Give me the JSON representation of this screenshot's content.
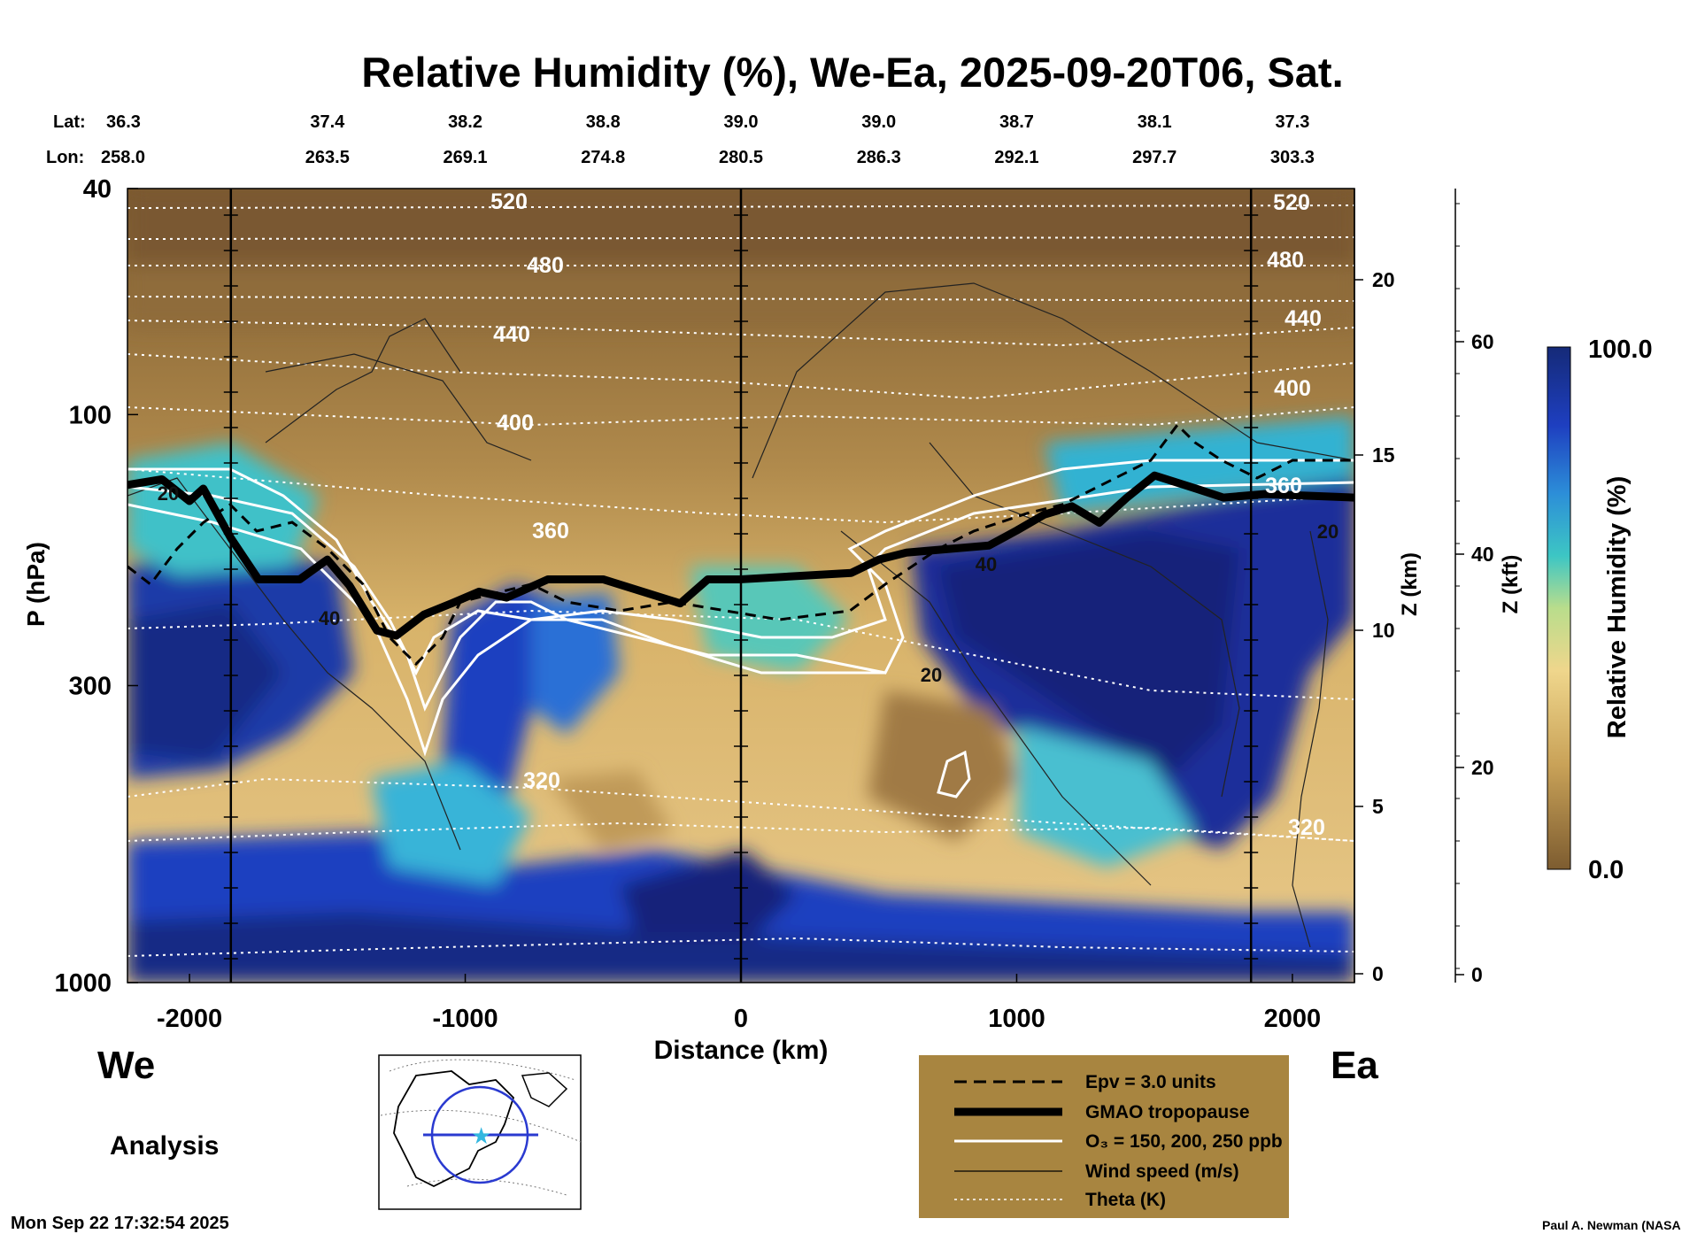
{
  "chart_data": {
    "type": "heatmap",
    "title": "Relative Humidity (%), We-Ea, 2025-09-20T06, Sat.",
    "xlabel": "Distance (km)",
    "ylabel": "P (hPa)",
    "z_km_label": "Z (km)",
    "z_kft_label": "Z (kft)",
    "colorbar_label": "Relative Humidity (%)",
    "colorbar_max": "100.0",
    "colorbar_min": "0.0",
    "xlim": [
      -2225,
      2225
    ],
    "ylim_hpa": [
      1000,
      40
    ],
    "y_log_scale": true,
    "x_ticks": [
      "-2000",
      "-1000",
      "0",
      "1000",
      "2000"
    ],
    "x_tick_values": [
      -2000,
      -1000,
      0,
      1000,
      2000
    ],
    "p_ticks": [
      "40",
      "100",
      "300",
      "1000"
    ],
    "p_tick_values": [
      40,
      100,
      300,
      1000
    ],
    "zkm_ticks": [
      "0",
      "5",
      "10",
      "15",
      "20"
    ],
    "zkft_ticks": [
      "0",
      "20",
      "40",
      "60"
    ],
    "lat_label": "Lat:",
    "lon_label": "Lon:",
    "lat_values": [
      "36.3",
      "37.4",
      "38.2",
      "38.8",
      "39.0",
      "39.0",
      "38.7",
      "38.1",
      "37.3"
    ],
    "lon_values": [
      "258.0",
      "263.5",
      "269.1",
      "274.8",
      "280.5",
      "286.3",
      "292.1",
      "297.7",
      "303.3"
    ],
    "latlon_x_km": [
      -2000,
      -1500,
      -1000,
      -500,
      0,
      500,
      1000,
      1500,
      2000
    ],
    "theta_labels": [
      "520",
      "480",
      "440",
      "400",
      "360",
      "320",
      "520",
      "480",
      "440",
      "400",
      "360",
      "320"
    ],
    "wind_labels": [
      "20",
      "40",
      "20",
      "40",
      "20"
    ],
    "tropopause": {
      "x": [
        -2225,
        -2100,
        -2000,
        -1950,
        -1850,
        -1750,
        -1600,
        -1500,
        -1420,
        -1320,
        -1250,
        -1150,
        -1050,
        -950,
        -850,
        -800,
        -700,
        -500,
        -220,
        -120,
        0,
        400,
        500,
        600,
        900,
        1000,
        1100,
        1200,
        1300,
        1400,
        1500,
        1650,
        1750,
        1900,
        2225
      ],
      "p": [
        133,
        130,
        142,
        135,
        165,
        195,
        195,
        180,
        200,
        240,
        245,
        225,
        215,
        205,
        210,
        205,
        195,
        195,
        215,
        195,
        195,
        190,
        180,
        175,
        170,
        160,
        150,
        145,
        155,
        140,
        128,
        135,
        140,
        138,
        140
      ]
    },
    "cross_section_lines_km": [
      -1850,
      0,
      1850
    ],
    "direction_left": "We",
    "direction_right": "Ea",
    "analysis_label": "Analysis",
    "timestamp": "Mon Sep 22 17:32:54 2025",
    "credit": "Paul A. Newman (NASA",
    "legend": [
      "Epv = 3.0 units",
      "GMAO tropopause",
      "O₃ = 150, 200, 250 ppb",
      "Wind speed (m/s)",
      "Theta (K)"
    ],
    "legend_placement": "bottom-center",
    "colors": {
      "dry": "#8a6a3a",
      "mid": "#e3c07a",
      "cyan": "#2fb6d2",
      "moist": "#1a2d8a",
      "legend_bg": "#a88540"
    }
  }
}
